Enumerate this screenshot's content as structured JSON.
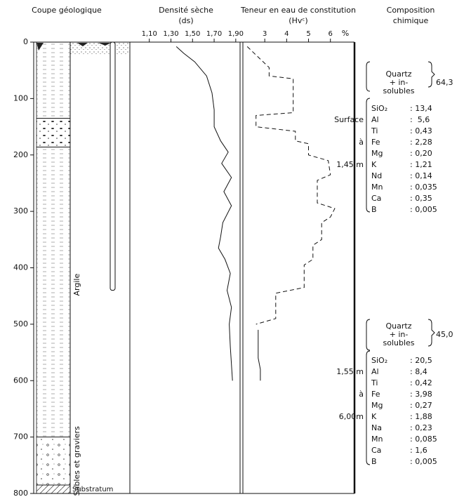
{
  "chart_data": [
    {
      "type": "column",
      "title": "Coupe géologique",
      "ylim": [
        0,
        800
      ],
      "yticks": [
        0,
        100,
        200,
        300,
        400,
        500,
        600,
        700,
        800
      ],
      "layers": [
        {
          "top": 0,
          "bottom": 135,
          "pattern": "clay"
        },
        {
          "top": 135,
          "bottom": 186,
          "pattern": "pebbles"
        },
        {
          "name": "Argile",
          "top": 186,
          "bottom": 700,
          "pattern": "clay"
        },
        {
          "name": "Sables et graviers",
          "top": 700,
          "bottom": 785,
          "pattern": "gravel"
        },
        {
          "name": "Substratum",
          "top": 785,
          "bottom": 800,
          "pattern": "bedrock"
        }
      ],
      "tube_depth": 440
    },
    {
      "type": "line",
      "title": "Densité sèche",
      "subtitle": "(ds)",
      "xlim": [
        0.92,
        1.94
      ],
      "xticks": [
        {
          "value": 1.1,
          "label": "1,10"
        },
        {
          "value": 1.3,
          "label": "1,30"
        },
        {
          "value": 1.5,
          "label": "1,50"
        },
        {
          "value": 1.7,
          "label": "1,70"
        },
        {
          "value": 1.9,
          "label": "1,90"
        }
      ],
      "series": [
        {
          "line": "solid",
          "depth": [
            8,
            20,
            35,
            60,
            90,
            120,
            150,
            175,
            195,
            215,
            240,
            265,
            290,
            320,
            345,
            365,
            385,
            410,
            440,
            470,
            500,
            540,
            600
          ],
          "values": [
            1.35,
            1.42,
            1.52,
            1.63,
            1.68,
            1.7,
            1.7,
            1.76,
            1.83,
            1.77,
            1.86,
            1.79,
            1.86,
            1.78,
            1.76,
            1.74,
            1.8,
            1.85,
            1.82,
            1.86,
            1.84,
            1.85,
            1.87
          ]
        }
      ]
    },
    {
      "type": "line",
      "title": "Teneur en eau de constitution",
      "subtitle": "(Hvᶜ)",
      "unit_label": "%",
      "xlim": [
        2.0,
        7.1
      ],
      "xticks": [
        3,
        4,
        5,
        6
      ],
      "series": [
        {
          "line": "dashed",
          "depth": [
            8,
            45,
            60,
            65,
            125,
            130,
            150,
            158,
            175,
            180,
            200,
            210,
            235,
            245,
            285,
            295,
            310,
            320,
            350,
            360,
            385,
            395,
            435,
            445,
            490,
            500
          ],
          "values": [
            2.2,
            3.2,
            3.2,
            4.3,
            4.3,
            2.6,
            2.6,
            4.4,
            4.4,
            5.0,
            5.0,
            5.9,
            6.0,
            5.4,
            5.4,
            6.2,
            6.0,
            5.6,
            5.6,
            5.2,
            5.2,
            4.8,
            4.8,
            3.5,
            3.5,
            2.6
          ]
        },
        {
          "line": "solid",
          "depth": [
            510,
            560,
            580,
            595,
            600
          ],
          "values": [
            2.7,
            2.7,
            2.8,
            2.8,
            2.8
          ]
        }
      ]
    }
  ],
  "composition": {
    "title": "Composition",
    "subtitle": "chimique",
    "blocks": [
      {
        "range": [
          "Surface",
          "à",
          "1,45 m"
        ],
        "quartz": [
          "Quartz",
          "+ in-",
          "solubles"
        ],
        "quartz_value": "64,3",
        "elements": [
          [
            "SiO₂",
            ": 13,4"
          ],
          [
            "Al",
            ":  5,6"
          ],
          [
            "Ti",
            ": 0,43"
          ],
          [
            "Fe",
            ": 2,28"
          ],
          [
            "Mg",
            ": 0,20"
          ],
          [
            "K",
            ": 1,21"
          ],
          [
            "Nd",
            ": 0,14"
          ],
          [
            "Mn",
            ": 0,035"
          ],
          [
            "Ca",
            ": 0,35"
          ],
          [
            "B",
            ": 0,005"
          ]
        ]
      },
      {
        "range": [
          "1,55 m",
          "à",
          "6,00m"
        ],
        "quartz": [
          "Quartz",
          "+ in-",
          "solubles"
        ],
        "quartz_value": "45,0",
        "elements": [
          [
            "SiO₂",
            ": 20,5"
          ],
          [
            "Al",
            ": 8,4"
          ],
          [
            "Ti",
            ": 0,42"
          ],
          [
            "Fe",
            ": 3,98"
          ],
          [
            "Mg",
            ": 0,27"
          ],
          [
            "K",
            ": 1,88"
          ],
          [
            "Na",
            ": 0,23"
          ],
          [
            "Mn",
            ": 0,085"
          ],
          [
            "Ca",
            ": 1,6"
          ],
          [
            "B",
            ": 0,005"
          ]
        ]
      }
    ]
  }
}
